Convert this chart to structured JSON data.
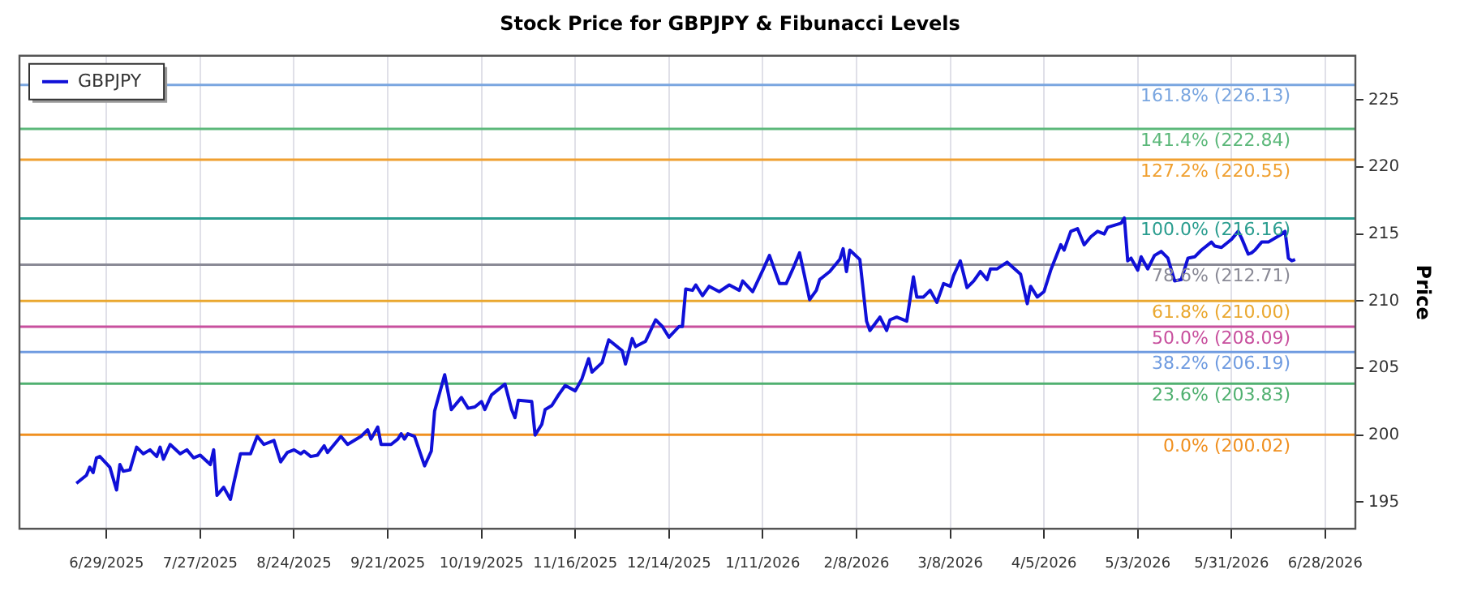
{
  "chart_data": {
    "type": "line",
    "title": "Stock Price for GBPJPY & Fibunacci Levels",
    "ylabel": "Price",
    "series": [
      {
        "name": "GBPJPY",
        "color": "#1010d8",
        "x": [
          "2025-06-20",
          "2025-06-23",
          "2025-06-24",
          "2025-06-25",
          "2025-06-26",
          "2025-06-27",
          "2025-06-30",
          "2025-07-02",
          "2025-07-03",
          "2025-07-04",
          "2025-07-06",
          "2025-07-08",
          "2025-07-10",
          "2025-07-12",
          "2025-07-14",
          "2025-07-15",
          "2025-07-16",
          "2025-07-18",
          "2025-07-21",
          "2025-07-23",
          "2025-07-25",
          "2025-07-27",
          "2025-07-30",
          "2025-07-31",
          "2025-08-01",
          "2025-08-03",
          "2025-08-05",
          "2025-08-06",
          "2025-08-08",
          "2025-08-11",
          "2025-08-13",
          "2025-08-15",
          "2025-08-18",
          "2025-08-20",
          "2025-08-22",
          "2025-08-24",
          "2025-08-26",
          "2025-08-27",
          "2025-08-29",
          "2025-08-31",
          "2025-09-02",
          "2025-09-03",
          "2025-09-05",
          "2025-09-07",
          "2025-09-09",
          "2025-09-13",
          "2025-09-15",
          "2025-09-16",
          "2025-09-18",
          "2025-09-19",
          "2025-09-22",
          "2025-09-24",
          "2025-09-25",
          "2025-09-26",
          "2025-09-27",
          "2025-09-29",
          "2025-10-02",
          "2025-10-04",
          "2025-10-05",
          "2025-10-08",
          "2025-10-10",
          "2025-10-13",
          "2025-10-15",
          "2025-10-17",
          "2025-10-19",
          "2025-10-20",
          "2025-10-22",
          "2025-10-26",
          "2025-10-28",
          "2025-10-29",
          "2025-10-30",
          "2025-11-03",
          "2025-11-04",
          "2025-11-06",
          "2025-11-07",
          "2025-11-09",
          "2025-11-11",
          "2025-11-13",
          "2025-11-16",
          "2025-11-18",
          "2025-11-20",
          "2025-11-21",
          "2025-11-24",
          "2025-11-26",
          "2025-11-30",
          "2025-12-01",
          "2025-12-03",
          "2025-12-04",
          "2025-12-07",
          "2025-12-10",
          "2025-12-12",
          "2025-12-14",
          "2025-12-17",
          "2025-12-18",
          "2025-12-19",
          "2025-12-21",
          "2025-12-22",
          "2025-12-24",
          "2025-12-26",
          "2025-12-29",
          "2026-01-01",
          "2026-01-04",
          "2026-01-05",
          "2026-01-08",
          "2026-01-11",
          "2026-01-13",
          "2026-01-16",
          "2026-01-18",
          "2026-01-20",
          "2026-01-22",
          "2026-01-25",
          "2026-01-27",
          "2026-01-28",
          "2026-01-31",
          "2026-02-03",
          "2026-02-04",
          "2026-02-05",
          "2026-02-06",
          "2026-02-09",
          "2026-02-11",
          "2026-02-12",
          "2026-02-15",
          "2026-02-17",
          "2026-02-18",
          "2026-02-20",
          "2026-02-23",
          "2026-02-25",
          "2026-02-26",
          "2026-02-28",
          "2026-03-02",
          "2026-03-04",
          "2026-03-06",
          "2026-03-08",
          "2026-03-09",
          "2026-03-11",
          "2026-03-13",
          "2026-03-15",
          "2026-03-17",
          "2026-03-19",
          "2026-03-20",
          "2026-03-22",
          "2026-03-25",
          "2026-03-29",
          "2026-03-31",
          "2026-04-01",
          "2026-04-03",
          "2026-04-05",
          "2026-04-07",
          "2026-04-10",
          "2026-04-11",
          "2026-04-13",
          "2026-04-15",
          "2026-04-17",
          "2026-04-19",
          "2026-04-21",
          "2026-04-23",
          "2026-04-24",
          "2026-04-28",
          "2026-04-29",
          "2026-04-30",
          "2026-05-01",
          "2026-05-03",
          "2026-05-04",
          "2026-05-06",
          "2026-05-08",
          "2026-05-10",
          "2026-05-12",
          "2026-05-14",
          "2026-05-16",
          "2026-05-18",
          "2026-05-20",
          "2026-05-22",
          "2026-05-25",
          "2026-05-26",
          "2026-05-28",
          "2026-05-31",
          "2026-06-02",
          "2026-06-03",
          "2026-06-05",
          "2026-06-06",
          "2026-06-07",
          "2026-06-09",
          "2026-06-11",
          "2026-06-15",
          "2026-06-16",
          "2026-06-17",
          "2026-06-18",
          "2026-06-19"
        ],
        "values": [
          196.4,
          197.0,
          197.6,
          197.2,
          198.3,
          198.4,
          197.6,
          195.9,
          197.8,
          197.3,
          197.4,
          199.1,
          198.6,
          198.9,
          198.4,
          199.1,
          198.2,
          199.3,
          198.6,
          198.9,
          198.3,
          198.5,
          197.8,
          198.9,
          195.5,
          196.1,
          195.2,
          196.4,
          198.6,
          198.6,
          199.9,
          199.3,
          199.6,
          198.0,
          198.7,
          198.9,
          198.6,
          198.8,
          198.4,
          198.5,
          199.2,
          198.7,
          199.3,
          199.9,
          199.3,
          199.9,
          200.4,
          199.7,
          200.6,
          199.3,
          199.3,
          199.7,
          200.1,
          199.7,
          200.1,
          199.9,
          197.7,
          198.8,
          201.8,
          204.5,
          201.9,
          202.8,
          202.0,
          202.1,
          202.5,
          201.9,
          203.0,
          203.8,
          201.9,
          201.3,
          202.6,
          202.5,
          200.0,
          200.8,
          201.9,
          202.2,
          203.0,
          203.7,
          203.3,
          204.2,
          205.7,
          204.7,
          205.4,
          207.1,
          206.3,
          205.3,
          207.2,
          206.6,
          207.0,
          208.6,
          208.1,
          207.3,
          208.1,
          208.1,
          210.9,
          210.8,
          211.2,
          210.4,
          211.1,
          210.7,
          211.2,
          210.8,
          211.5,
          210.7,
          212.3,
          213.4,
          211.3,
          211.3,
          212.4,
          213.6,
          210.1,
          210.8,
          211.6,
          212.2,
          213.1,
          213.9,
          212.2,
          213.8,
          213.1,
          208.5,
          207.8,
          208.8,
          207.8,
          208.6,
          208.8,
          208.5,
          211.8,
          210.3,
          210.3,
          210.8,
          209.9,
          211.3,
          211.1,
          211.9,
          213.0,
          211.0,
          211.5,
          212.2,
          211.6,
          212.4,
          212.4,
          212.9,
          212.0,
          209.8,
          211.1,
          210.3,
          210.7,
          212.3,
          214.2,
          213.8,
          215.2,
          215.4,
          214.2,
          214.8,
          215.2,
          215.0,
          215.5,
          215.8,
          216.2,
          213.0,
          213.2,
          212.3,
          213.3,
          212.4,
          213.4,
          213.7,
          213.2,
          211.5,
          211.6,
          213.2,
          213.3,
          213.8,
          214.4,
          214.1,
          214.0,
          214.6,
          215.2,
          214.7,
          213.5,
          213.6,
          213.8,
          214.4,
          214.4,
          215.0,
          215.2,
          213.2,
          213.0,
          213.1
        ]
      }
    ],
    "xlim": [
      "2025-06-03",
      "2026-07-07"
    ],
    "xticks": [
      {
        "value": "2025-06-29",
        "label": "6/29/2025"
      },
      {
        "value": "2025-07-27",
        "label": "7/27/2025"
      },
      {
        "value": "2025-08-24",
        "label": "8/24/2025"
      },
      {
        "value": "2025-09-21",
        "label": "9/21/2025"
      },
      {
        "value": "2025-10-19",
        "label": "10/19/2025"
      },
      {
        "value": "2025-11-16",
        "label": "11/16/2025"
      },
      {
        "value": "2025-12-14",
        "label": "12/14/2025"
      },
      {
        "value": "2026-01-11",
        "label": "1/11/2026"
      },
      {
        "value": "2026-02-08",
        "label": "2/8/2026"
      },
      {
        "value": "2026-03-08",
        "label": "3/8/2026"
      },
      {
        "value": "2026-04-05",
        "label": "4/5/2026"
      },
      {
        "value": "2026-05-03",
        "label": "5/3/2026"
      },
      {
        "value": "2026-05-31",
        "label": "5/31/2026"
      },
      {
        "value": "2026-06-28",
        "label": "6/28/2026"
      }
    ],
    "ylim": [
      193,
      228.3
    ],
    "yticks": [
      195,
      200,
      205,
      210,
      215,
      220,
      225
    ],
    "ref_lines": [
      {
        "axis": "y",
        "value": 226.13,
        "label": "161.8% (226.13)",
        "color": "#7aa6e0"
      },
      {
        "axis": "y",
        "value": 222.84,
        "label": "141.4% (222.84)",
        "color": "#5cb87a"
      },
      {
        "axis": "y",
        "value": 220.55,
        "label": "127.2% (220.55)",
        "color": "#f0a030"
      },
      {
        "axis": "y",
        "value": 216.16,
        "label": "100.0% (216.16)",
        "color": "#2a9d8f"
      },
      {
        "axis": "y",
        "value": 212.71,
        "label": "78.6% (212.71)",
        "color": "#8a8a96"
      },
      {
        "axis": "y",
        "value": 210.0,
        "label": "61.8% (210.00)",
        "color": "#eaa830"
      },
      {
        "axis": "y",
        "value": 208.09,
        "label": "50.0% (208.09)",
        "color": "#c8509e"
      },
      {
        "axis": "y",
        "value": 206.19,
        "label": "38.2% (206.19)",
        "color": "#6f9be0"
      },
      {
        "axis": "y",
        "value": 203.83,
        "label": "23.6% (203.83)",
        "color": "#50b070"
      },
      {
        "axis": "y",
        "value": 200.02,
        "label": "0.0% (200.02)",
        "color": "#f09020"
      }
    ],
    "grid": "x",
    "legend": "top left",
    "marker": "none",
    "line_style": "solid"
  }
}
